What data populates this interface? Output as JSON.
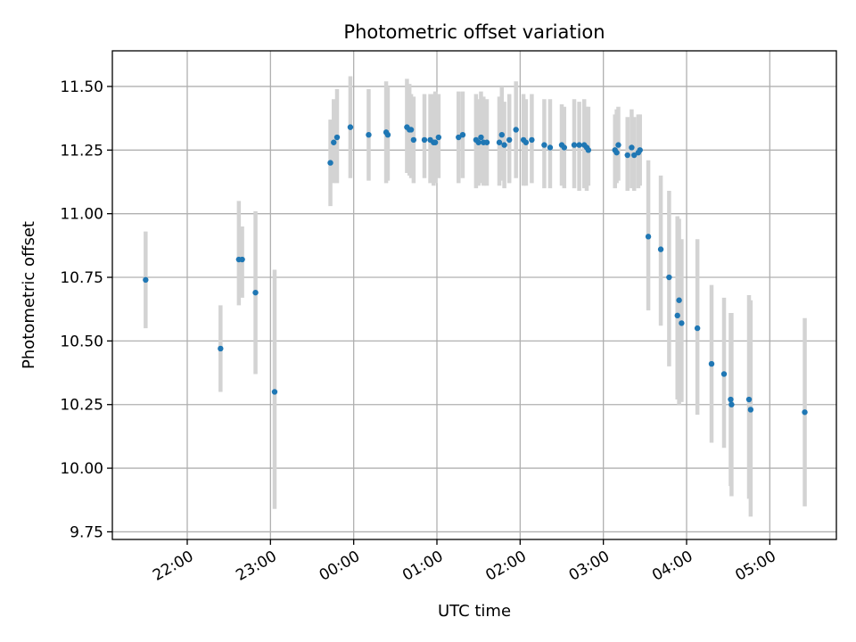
{
  "chart_data": {
    "type": "scatter",
    "title": "Photometric offset variation",
    "xlabel": "UTC time",
    "ylabel": "Photometric offset",
    "x_unit": "UTC time of night (hours after midnight, negative = previous evening)",
    "xlim": [
      -2.9,
      5.8
    ],
    "ylim": [
      9.72,
      11.64
    ],
    "grid": true,
    "x_ticks": [
      {
        "value": -2,
        "label": "22:00"
      },
      {
        "value": -1,
        "label": "23:00"
      },
      {
        "value": 0,
        "label": "00:00"
      },
      {
        "value": 1,
        "label": "01:00"
      },
      {
        "value": 2,
        "label": "02:00"
      },
      {
        "value": 3,
        "label": "03:00"
      },
      {
        "value": 4,
        "label": "04:00"
      },
      {
        "value": 5,
        "label": "05:00"
      }
    ],
    "y_ticks": [
      {
        "value": 9.75,
        "label": "9.75"
      },
      {
        "value": 10.0,
        "label": "10.00"
      },
      {
        "value": 10.25,
        "label": "10.25"
      },
      {
        "value": 10.5,
        "label": "10.50"
      },
      {
        "value": 10.75,
        "label": "10.75"
      },
      {
        "value": 11.0,
        "label": "11.00"
      },
      {
        "value": 11.25,
        "label": "11.25"
      },
      {
        "value": 11.5,
        "label": "11.50"
      }
    ],
    "colors": {
      "point": "#1f77b4",
      "errorbar": "#d3d3d3",
      "grid": "#b0b0b0"
    },
    "series": [
      {
        "x": [
          -2.5,
          -1.6,
          -1.38,
          -1.34,
          -1.18,
          -0.95
        ],
        "y": [
          10.74,
          10.47,
          10.82,
          10.82,
          10.69,
          10.3
        ],
        "err_low": [
          10.55,
          10.3,
          10.64,
          10.67,
          10.37,
          9.84
        ],
        "err_high": [
          10.93,
          10.64,
          11.05,
          10.95,
          11.01,
          10.78
        ]
      },
      {
        "x": [
          -0.28,
          -0.24,
          -0.2,
          -0.04,
          0.18,
          0.39,
          0.41,
          0.64,
          0.67,
          0.69,
          0.72,
          0.85,
          0.92,
          0.96,
          0.98,
          1.02,
          1.26,
          1.31,
          1.47,
          1.5,
          1.53,
          1.56,
          1.6,
          1.75,
          1.78,
          1.81,
          1.87,
          1.95,
          2.04,
          2.07,
          2.14,
          2.29,
          2.36,
          2.5,
          2.53,
          2.65,
          2.71,
          2.77,
          2.8,
          2.82
        ],
        "y": [
          11.2,
          11.28,
          11.3,
          11.34,
          11.31,
          11.32,
          11.31,
          11.34,
          11.33,
          11.33,
          11.29,
          11.29,
          11.29,
          11.28,
          11.28,
          11.3,
          11.3,
          11.31,
          11.29,
          11.28,
          11.3,
          11.28,
          11.28,
          11.28,
          11.31,
          11.27,
          11.29,
          11.33,
          11.29,
          11.28,
          11.29,
          11.27,
          11.26,
          11.27,
          11.26,
          11.27,
          11.27,
          11.27,
          11.26,
          11.25
        ],
        "err_low": [
          11.03,
          11.12,
          11.12,
          11.14,
          11.13,
          11.12,
          11.13,
          11.16,
          11.15,
          11.14,
          11.12,
          11.14,
          11.12,
          11.11,
          11.12,
          11.14,
          11.12,
          11.14,
          11.1,
          11.11,
          11.12,
          11.11,
          11.11,
          11.11,
          11.13,
          11.1,
          11.12,
          11.14,
          11.11,
          11.11,
          11.12,
          11.1,
          11.1,
          11.11,
          11.1,
          11.1,
          11.09,
          11.1,
          11.09,
          11.11
        ],
        "err_high": [
          11.37,
          11.45,
          11.49,
          11.54,
          11.49,
          11.52,
          11.5,
          11.53,
          11.51,
          11.47,
          11.46,
          11.47,
          11.47,
          11.47,
          11.48,
          11.47,
          11.48,
          11.48,
          11.47,
          11.45,
          11.48,
          11.46,
          11.45,
          11.46,
          11.5,
          11.44,
          11.47,
          11.52,
          11.47,
          11.45,
          11.47,
          11.45,
          11.45,
          11.43,
          11.42,
          11.45,
          11.44,
          11.45,
          11.42,
          11.42
        ]
      },
      {
        "x": [
          3.14,
          3.16,
          3.18,
          3.29,
          3.34,
          3.37,
          3.42,
          3.44
        ],
        "y": [
          11.25,
          11.24,
          11.27,
          11.23,
          11.26,
          11.23,
          11.24,
          11.25
        ],
        "err_low": [
          11.1,
          11.12,
          11.13,
          11.09,
          11.1,
          11.09,
          11.1,
          11.11
        ],
        "err_high": [
          11.39,
          11.41,
          11.42,
          11.38,
          11.41,
          11.38,
          11.39,
          11.39
        ]
      },
      {
        "x": [
          3.54,
          3.69,
          3.79,
          3.89,
          3.91,
          3.94,
          4.13,
          4.3,
          4.45,
          4.53,
          4.54,
          4.75,
          4.77,
          5.42
        ],
        "y": [
          10.91,
          10.86,
          10.75,
          10.6,
          10.66,
          10.57,
          10.55,
          10.41,
          10.37,
          10.27,
          10.25,
          10.27,
          10.23,
          10.22
        ],
        "err_low": [
          10.62,
          10.56,
          10.4,
          10.27,
          10.25,
          10.26,
          10.21,
          10.1,
          10.08,
          9.93,
          9.89,
          9.88,
          9.81,
          9.85
        ],
        "err_high": [
          11.21,
          11.15,
          11.09,
          10.99,
          10.98,
          10.9,
          10.9,
          10.72,
          10.67,
          10.61,
          10.61,
          10.68,
          10.66,
          10.59
        ]
      }
    ]
  }
}
